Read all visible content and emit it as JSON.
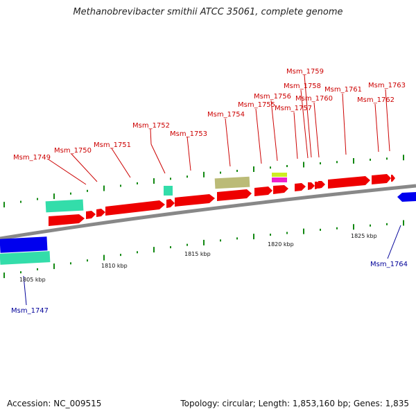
{
  "title": "Methanobrevibacter smithii ATCC 35061, complete genome",
  "footer": {
    "accession": "Accession: NC_009515",
    "summary": "Topology: circular; Length: 1,853,160 bp; Genes: 1,835"
  },
  "colors": {
    "forward_gene": "#ff0000",
    "reverse_gene": "#0000ff",
    "forward_label": "#cc0000",
    "reverse_label": "#000099",
    "teal_feature": "#33ddaa",
    "khaki_feature": "#bbbb77",
    "magenta_feature": "#ee22cc",
    "yellow_feature": "#ccee22",
    "backbone": "#888888",
    "tick": "#118811"
  },
  "scale": {
    "ticks": [
      {
        "label": "1805 kbp"
      },
      {
        "label": "1810 kbp"
      },
      {
        "label": "1815 kbp"
      },
      {
        "label": "1820 kbp"
      },
      {
        "label": "1825 kbp"
      }
    ]
  },
  "genes": [
    {
      "label": "Msm_1747",
      "strand": "reverse"
    },
    {
      "label": "Msm_1749",
      "strand": "forward"
    },
    {
      "label": "Msm_1750",
      "strand": "forward"
    },
    {
      "label": "Msm_1751",
      "strand": "forward"
    },
    {
      "label": "Msm_1752",
      "strand": "forward"
    },
    {
      "label": "Msm_1753",
      "strand": "forward"
    },
    {
      "label": "Msm_1754",
      "strand": "forward"
    },
    {
      "label": "Msm_1755",
      "strand": "forward"
    },
    {
      "label": "Msm_1756",
      "strand": "forward"
    },
    {
      "label": "Msm_1757",
      "strand": "forward"
    },
    {
      "label": "Msm_1758",
      "strand": "forward"
    },
    {
      "label": "Msm_1759",
      "strand": "forward"
    },
    {
      "label": "Msm_1760",
      "strand": "forward"
    },
    {
      "label": "Msm_1761",
      "strand": "forward"
    },
    {
      "label": "Msm_1762",
      "strand": "forward"
    },
    {
      "label": "Msm_1763",
      "strand": "forward"
    },
    {
      "label": "Msm_1764",
      "strand": "reverse"
    }
  ]
}
